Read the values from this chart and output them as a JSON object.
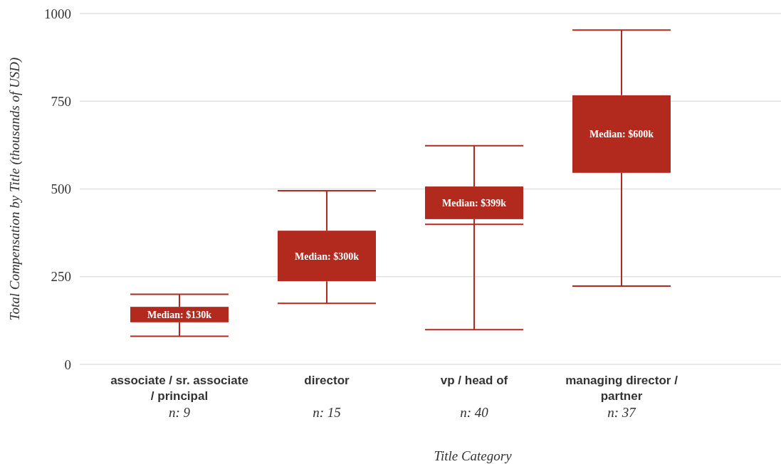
{
  "chart_data": {
    "type": "box",
    "xlabel": "Title Category",
    "ylabel": "Total Compensation by Title (thousands of USD)",
    "categories": [
      "associate / sr. associate / principal",
      "director",
      "vp / head of",
      "managing director / partner"
    ],
    "color": "#b22a1e",
    "boxes": [
      {
        "low": 80,
        "q1": 120,
        "median": 130,
        "q3": 164,
        "high": 200
      },
      {
        "low": 174,
        "q1": 237,
        "median": 300,
        "q3": 381,
        "high": 495
      },
      {
        "low": 99,
        "q1": 414,
        "median": 399,
        "q3": 507,
        "high": 623
      },
      {
        "low": 223,
        "q1": 546,
        "median": 600,
        "q3": 767,
        "high": 953
      }
    ],
    "ylim": [
      0,
      1000
    ],
    "yticks": [
      0,
      250,
      500,
      750,
      1000
    ],
    "grid": "y",
    "annotations": [
      "Median: $130k",
      "Median: $300k",
      "Median: $399k",
      "Median: $600k",
      "n: 9",
      "n: 15",
      "n: 40",
      "n: 37"
    ]
  }
}
